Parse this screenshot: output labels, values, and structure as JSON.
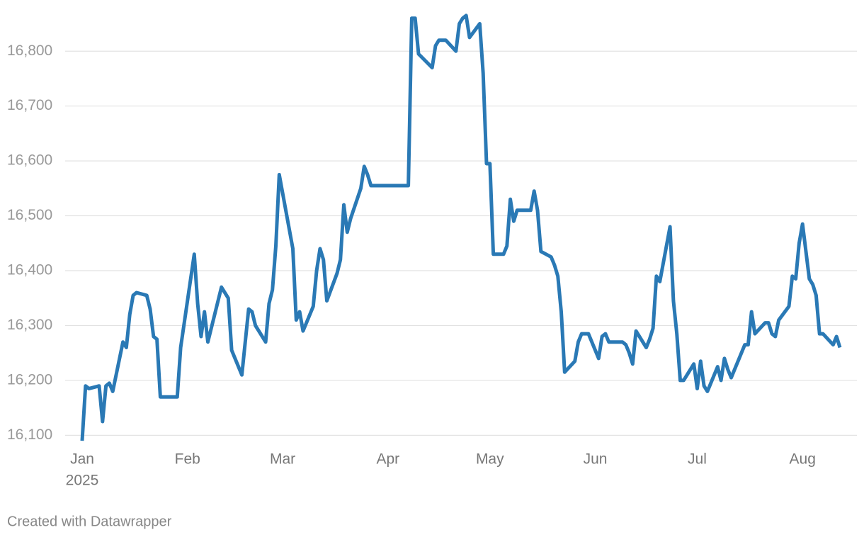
{
  "chart_data": {
    "type": "line",
    "credit": "Created with Datawrapper",
    "color": "#2a79b5",
    "grid": true,
    "xlim": [
      1,
      224
    ],
    "xticks": [
      {
        "value": 1,
        "label": "Jan",
        "sublabel": "2025"
      },
      {
        "value": 32,
        "label": "Feb"
      },
      {
        "value": 60,
        "label": "Mar"
      },
      {
        "value": 91,
        "label": "Apr"
      },
      {
        "value": 121,
        "label": "May"
      },
      {
        "value": 152,
        "label": "Jun"
      },
      {
        "value": 182,
        "label": "Jul"
      },
      {
        "value": 213,
        "label": "Aug"
      }
    ],
    "ylim": [
      16085,
      16870
    ],
    "yticks": [
      {
        "value": 16100,
        "label": "16,100"
      },
      {
        "value": 16200,
        "label": "16,200"
      },
      {
        "value": 16300,
        "label": "16,300"
      },
      {
        "value": 16400,
        "label": "16,400"
      },
      {
        "value": 16500,
        "label": "16,500"
      },
      {
        "value": 16600,
        "label": "16,600"
      },
      {
        "value": 16700,
        "label": "16,700"
      },
      {
        "value": 16800,
        "label": "16,800"
      }
    ],
    "x": [
      1,
      2,
      3,
      6,
      7,
      8,
      9,
      10,
      13,
      14,
      15,
      16,
      17,
      20,
      21,
      22,
      23,
      24,
      29,
      30,
      34,
      35,
      36,
      37,
      38,
      42,
      44,
      45,
      48,
      50,
      51,
      52,
      55,
      56,
      57,
      58,
      59,
      63,
      64,
      65,
      66,
      69,
      70,
      71,
      72,
      73,
      76,
      77,
      78,
      79,
      80,
      83,
      84,
      85,
      86,
      97,
      98,
      99,
      100,
      104,
      105,
      106,
      108,
      111,
      112,
      113,
      114,
      115,
      118,
      119,
      120,
      121,
      122,
      125,
      126,
      127,
      128,
      129,
      133,
      134,
      135,
      136,
      139,
      140,
      141,
      142,
      143,
      146,
      147,
      148,
      150,
      153,
      154,
      155,
      156,
      160,
      161,
      162,
      163,
      164,
      167,
      168,
      169,
      170,
      171,
      174,
      175,
      176,
      177,
      178,
      181,
      182,
      183,
      184,
      185,
      188,
      189,
      190,
      191,
      192,
      195,
      196,
      197,
      198,
      199,
      202,
      203,
      204,
      205,
      206,
      209,
      210,
      211,
      212,
      213,
      215,
      216,
      217,
      218,
      219,
      222,
      223,
      224
    ],
    "values": [
      16090,
      16190,
      16185,
      16190,
      16125,
      16190,
      16195,
      16180,
      16270,
      16260,
      16320,
      16355,
      16360,
      16355,
      16330,
      16280,
      16275,
      16170,
      16170,
      16260,
      16430,
      16340,
      16280,
      16325,
      16270,
      16370,
      16350,
      16255,
      16210,
      16330,
      16325,
      16300,
      16270,
      16340,
      16365,
      16445,
      16575,
      16440,
      16310,
      16325,
      16290,
      16335,
      16400,
      16440,
      16420,
      16345,
      16395,
      16420,
      16520,
      16470,
      16495,
      16550,
      16590,
      16575,
      16555,
      16555,
      16860,
      16860,
      16795,
      16770,
      16810,
      16820,
      16820,
      16800,
      16850,
      16860,
      16865,
      16825,
      16850,
      16760,
      16595,
      16595,
      16430,
      16430,
      16445,
      16530,
      16490,
      16510,
      16510,
      16545,
      16510,
      16435,
      16425,
      16410,
      16390,
      16325,
      16215,
      16235,
      16270,
      16285,
      16285,
      16240,
      16280,
      16285,
      16270,
      16270,
      16265,
      16250,
      16230,
      16290,
      16260,
      16275,
      16295,
      16390,
      16380,
      16480,
      16345,
      16285,
      16200,
      16200,
      16230,
      16185,
      16235,
      16190,
      16180,
      16225,
      16200,
      16240,
      16220,
      16205,
      16250,
      16265,
      16265,
      16325,
      16285,
      16305,
      16305,
      16285,
      16280,
      16310,
      16335,
      16390,
      16385,
      16450,
      16485,
      16385,
      16375,
      16355,
      16285,
      16285,
      16265,
      16280,
      16260
    ]
  }
}
